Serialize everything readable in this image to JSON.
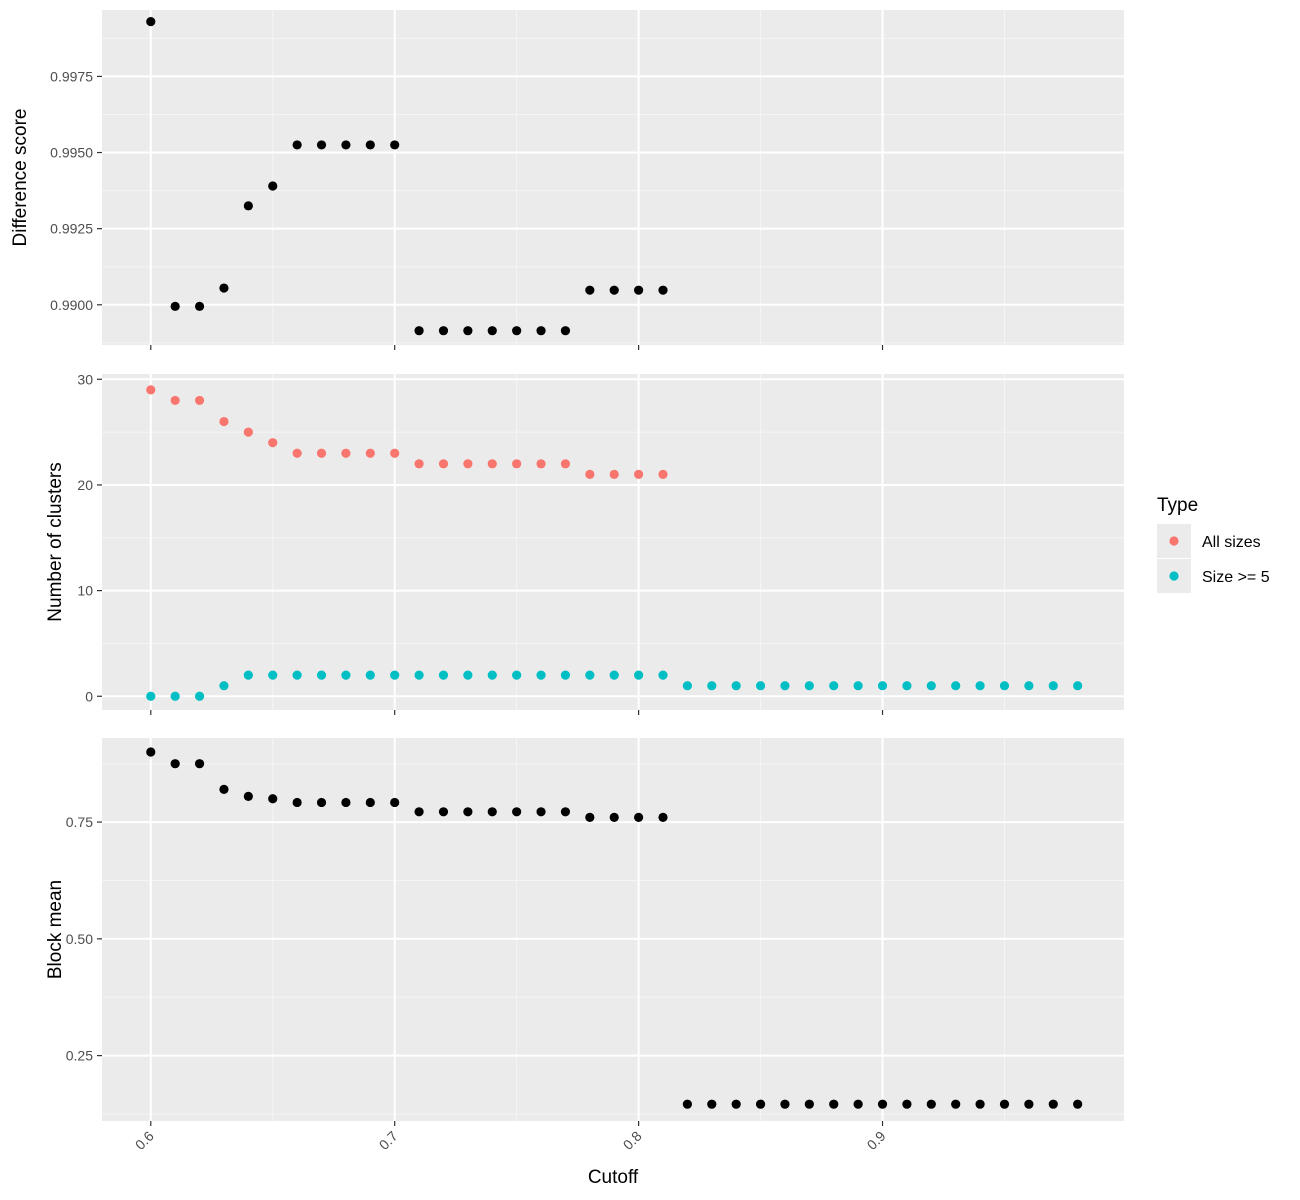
{
  "colors": {
    "panel_background": "#EBEBEB",
    "grid_major": "#FFFFFF",
    "grid_minor": "#F5F5F5",
    "point_default": "#000000",
    "series_all_sizes": "#F8766D",
    "series_size_ge_5": "#00BFC4"
  },
  "chart_data": {
    "type": "scatter",
    "xlabel": "Cutoff",
    "x_ticks": [
      0.6,
      0.7,
      0.8,
      0.9
    ],
    "x_tick_labels": [
      "0.6",
      "0.7",
      "0.8",
      "0.9"
    ],
    "xlim": [
      0.58,
      0.999
    ],
    "grid": true,
    "legend": {
      "title": "Type",
      "placement": "right",
      "entries": [
        "All sizes",
        "Size >= 5"
      ]
    },
    "panels": [
      {
        "ylabel": "Difference score",
        "y_ticks": [
          0.99,
          0.9925,
          0.995,
          0.9975
        ],
        "y_tick_labels": [
          "0.9900",
          "0.9925",
          "0.9950",
          "0.9975"
        ],
        "ylim": [
          0.98868,
          0.99968
        ],
        "series": [
          {
            "color_key": "point_default",
            "x": [
              0.6,
              0.61,
              0.62,
              0.63,
              0.64,
              0.65,
              0.66,
              0.67,
              0.68,
              0.69,
              0.7,
              0.71,
              0.72,
              0.73,
              0.74,
              0.75,
              0.76,
              0.77,
              0.78,
              0.79,
              0.8,
              0.81
            ],
            "y": [
              0.9993,
              0.98995,
              0.98995,
              0.99055,
              0.99325,
              0.9939,
              0.99525,
              0.99525,
              0.99525,
              0.99525,
              0.99525,
              0.98915,
              0.98915,
              0.98915,
              0.98915,
              0.98915,
              0.98915,
              0.98915,
              0.99048,
              0.99048,
              0.99048,
              0.99048
            ]
          }
        ]
      },
      {
        "ylabel": "Number of clusters",
        "y_ticks": [
          0,
          10,
          20,
          30
        ],
        "y_tick_labels": [
          "0",
          "10",
          "20",
          "30"
        ],
        "ylim": [
          -1.3,
          30.5
        ],
        "series": [
          {
            "name": "All sizes",
            "color_key": "series_all_sizes",
            "x": [
              0.6,
              0.61,
              0.62,
              0.63,
              0.64,
              0.65,
              0.66,
              0.67,
              0.68,
              0.69,
              0.7,
              0.71,
              0.72,
              0.73,
              0.74,
              0.75,
              0.76,
              0.77,
              0.78,
              0.79,
              0.8,
              0.81
            ],
            "y": [
              29,
              28,
              28,
              26,
              25,
              24,
              23,
              23,
              23,
              23,
              23,
              22,
              22,
              22,
              22,
              22,
              22,
              22,
              21,
              21,
              21,
              21
            ]
          },
          {
            "name": "Size >= 5",
            "color_key": "series_size_ge_5",
            "x": [
              0.6,
              0.61,
              0.62,
              0.63,
              0.64,
              0.65,
              0.66,
              0.67,
              0.68,
              0.69,
              0.7,
              0.71,
              0.72,
              0.73,
              0.74,
              0.75,
              0.76,
              0.77,
              0.78,
              0.79,
              0.8,
              0.81,
              0.82,
              0.83,
              0.84,
              0.85,
              0.86,
              0.87,
              0.88,
              0.89,
              0.9,
              0.91,
              0.92,
              0.93,
              0.94,
              0.95,
              0.96,
              0.97,
              0.98
            ],
            "y": [
              0,
              0,
              0,
              1,
              2,
              2,
              2,
              2,
              2,
              2,
              2,
              2,
              2,
              2,
              2,
              2,
              2,
              2,
              2,
              2,
              2,
              2,
              1,
              1,
              1,
              1,
              1,
              1,
              1,
              1,
              1,
              1,
              1,
              1,
              1,
              1,
              1,
              1,
              1
            ]
          }
        ]
      },
      {
        "ylabel": "Block mean",
        "y_ticks": [
          0.25,
          0.5,
          0.75
        ],
        "y_tick_labels": [
          "0.25",
          "0.50",
          "0.75"
        ],
        "ylim": [
          0.11,
          0.93
        ],
        "series": [
          {
            "color_key": "point_default",
            "x": [
              0.6,
              0.61,
              0.62,
              0.63,
              0.64,
              0.65,
              0.66,
              0.67,
              0.68,
              0.69,
              0.7,
              0.71,
              0.72,
              0.73,
              0.74,
              0.75,
              0.76,
              0.77,
              0.78,
              0.79,
              0.8,
              0.81,
              0.82,
              0.83,
              0.84,
              0.85,
              0.86,
              0.87,
              0.88,
              0.89,
              0.9,
              0.91,
              0.92,
              0.93,
              0.94,
              0.95,
              0.96,
              0.97,
              0.98
            ],
            "y": [
              0.9,
              0.875,
              0.875,
              0.82,
              0.805,
              0.8,
              0.792,
              0.792,
              0.792,
              0.792,
              0.792,
              0.772,
              0.772,
              0.772,
              0.772,
              0.772,
              0.772,
              0.772,
              0.76,
              0.76,
              0.76,
              0.76,
              0.146,
              0.146,
              0.146,
              0.146,
              0.146,
              0.146,
              0.146,
              0.146,
              0.146,
              0.146,
              0.146,
              0.146,
              0.146,
              0.146,
              0.146,
              0.146,
              0.146
            ]
          }
        ]
      }
    ]
  }
}
